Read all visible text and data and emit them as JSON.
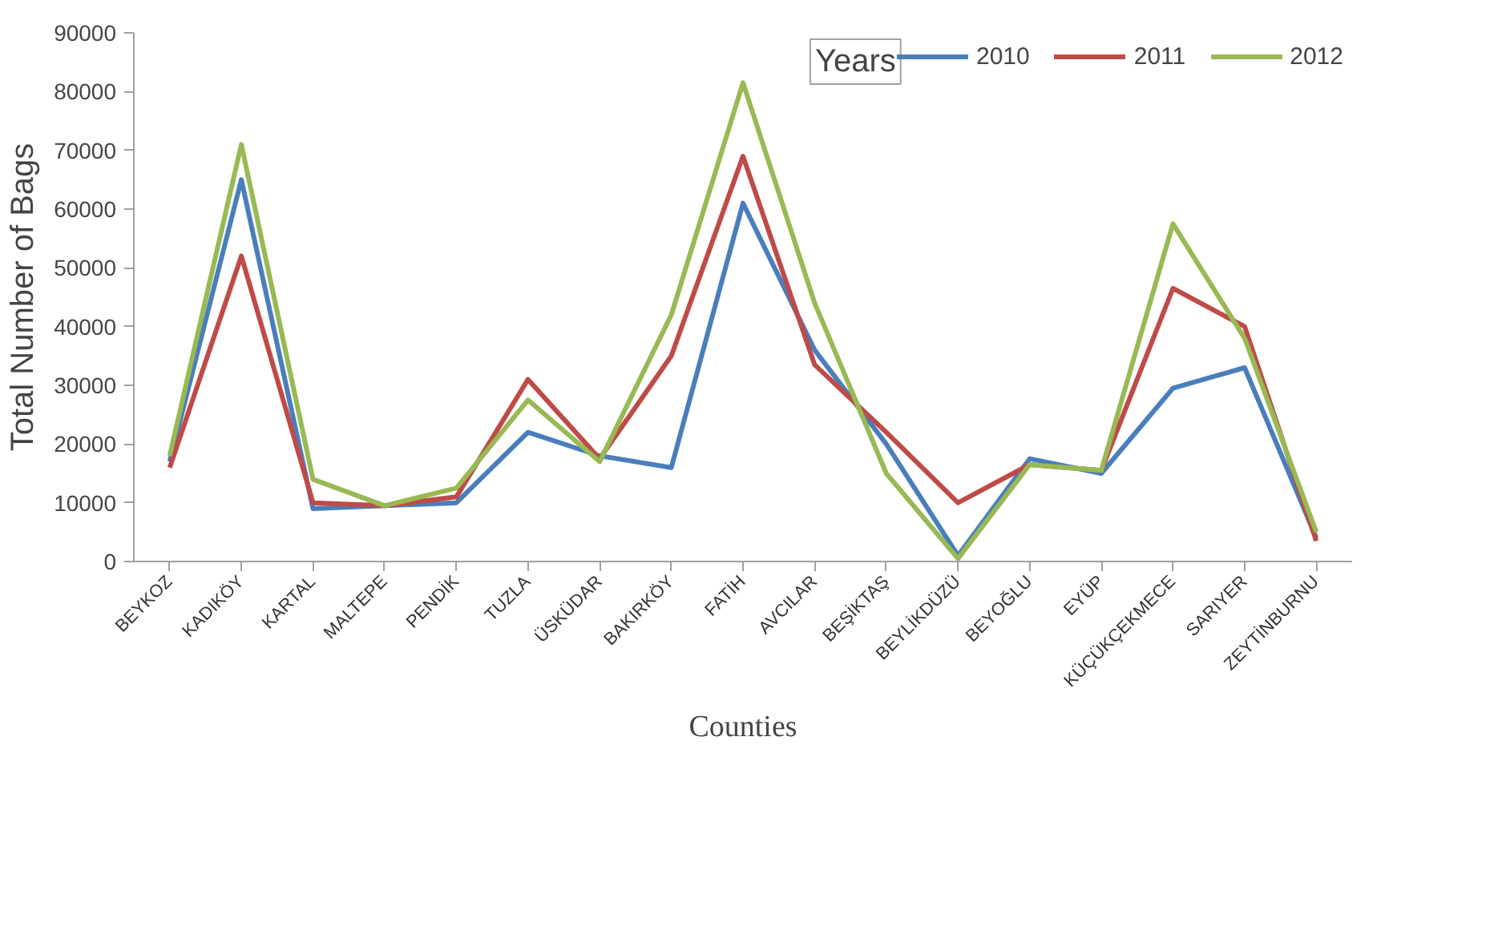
{
  "chart_data": {
    "type": "line",
    "xlabel": "Counties",
    "ylabel": "Total Number of Bags",
    "legend_title": "Years",
    "categories": [
      "BEYKOZ",
      "KADIKÖY",
      "KARTAL",
      "MALTEPE",
      "PENDİK",
      "TUZLA",
      "ÜSKÜDAR",
      "BAKIRKÖY",
      "FATİH",
      "AVCILAR",
      "BEŞİKTAŞ",
      "BEYLİKDÜZÜ",
      "BEYOĞLU",
      "EYÜP",
      "KÜÇÜKÇEKMECE",
      "SARIYER",
      "ZEYTİNBURNU"
    ],
    "series": [
      {
        "name": "2010",
        "color": "#4a7ebb",
        "values": [
          17000,
          65000,
          9000,
          9500,
          10000,
          22000,
          18000,
          16000,
          61000,
          36000,
          20000,
          1000,
          17500,
          15000,
          29500,
          33000,
          4000
        ]
      },
      {
        "name": "2011",
        "color": "#be4b48",
        "values": [
          16000,
          52000,
          10000,
          9500,
          11000,
          31000,
          17500,
          35000,
          69000,
          33500,
          22000,
          10000,
          16500,
          15500,
          46500,
          40000,
          3500
        ]
      },
      {
        "name": "2012",
        "color": "#98b954",
        "values": [
          18000,
          71000,
          14000,
          9500,
          12500,
          27500,
          17000,
          42000,
          81500,
          44000,
          15000,
          500,
          16500,
          15500,
          57500,
          38000,
          5000
        ]
      }
    ],
    "ylim": [
      0,
      90000
    ],
    "yticks": [
      0,
      10000,
      20000,
      30000,
      40000,
      50000,
      60000,
      70000,
      80000,
      90000
    ],
    "grid": false,
    "legend": "top right",
    "marker": "none",
    "line_style": "solid"
  }
}
